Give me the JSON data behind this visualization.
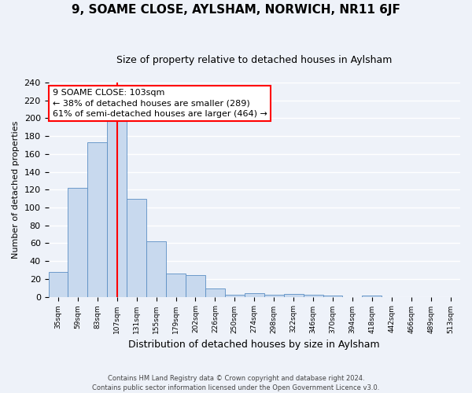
{
  "title": "9, SOAME CLOSE, AYLSHAM, NORWICH, NR11 6JF",
  "subtitle": "Size of property relative to detached houses in Aylsham",
  "xlabel": "Distribution of detached houses by size in Aylsham",
  "ylabel": "Number of detached properties",
  "bar_labels": [
    "35sqm",
    "59sqm",
    "83sqm",
    "107sqm",
    "131sqm",
    "155sqm",
    "179sqm",
    "202sqm",
    "226sqm",
    "250sqm",
    "274sqm",
    "298sqm",
    "322sqm",
    "346sqm",
    "370sqm",
    "394sqm",
    "418sqm",
    "442sqm",
    "466sqm",
    "489sqm",
    "513sqm"
  ],
  "bar_values": [
    28,
    122,
    173,
    197,
    110,
    62,
    26,
    24,
    9,
    2,
    4,
    2,
    3,
    2,
    1,
    0,
    1,
    0,
    0,
    0,
    0
  ],
  "bar_color": "#c8d9ee",
  "bar_edge_color": "#5b8ec4",
  "vline_x_index": 3,
  "vline_color": "red",
  "annotation_line1": "9 SOAME CLOSE: 103sqm",
  "annotation_line2": "← 38% of detached houses are smaller (289)",
  "annotation_line3": "61% of semi-detached houses are larger (464) →",
  "annotation_box_color": "white",
  "annotation_box_edge_color": "red",
  "ylim": [
    0,
    240
  ],
  "yticks": [
    0,
    20,
    40,
    60,
    80,
    100,
    120,
    140,
    160,
    180,
    200,
    220,
    240
  ],
  "footer1": "Contains HM Land Registry data © Crown copyright and database right 2024.",
  "footer2": "Contains public sector information licensed under the Open Government Licence v3.0.",
  "bg_color": "#eef2f9",
  "grid_color": "#ffffff"
}
